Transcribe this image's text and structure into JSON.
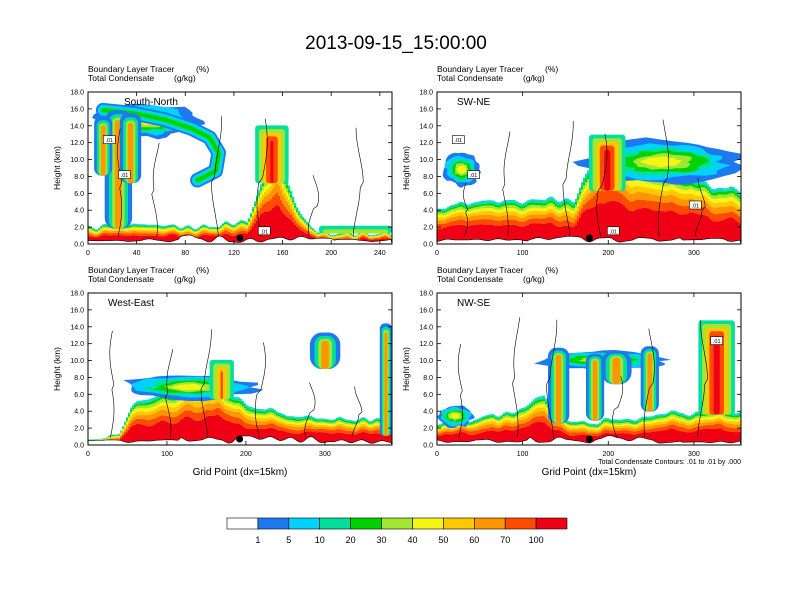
{
  "title": "2013-09-15_15:00:00",
  "contour_note": "Total Condensate Contours: .01 to .01 by .000",
  "colorbar": {
    "colors": [
      "#ffffff",
      "#1e78f0",
      "#00d2ff",
      "#00e09a",
      "#00d200",
      "#a0e632",
      "#f5f514",
      "#ffc800",
      "#ff9600",
      "#ff4b00",
      "#f00014"
    ],
    "labels": [
      "1",
      "5",
      "10",
      "20",
      "30",
      "40",
      "50",
      "60",
      "70",
      "100"
    ]
  },
  "chart_data": [
    {
      "type": "heatmap",
      "panel": "South-North",
      "title_left_1": "Boundary Layer Tracer",
      "title_right_1": "(%)",
      "title_left_2": "Total Condensate",
      "title_right_2": "(g/kg)",
      "xlabel": "",
      "ylabel": "Height (km)",
      "xlim": [
        0,
        250
      ],
      "ylim": [
        0,
        18
      ],
      "xticks": [
        0,
        40,
        80,
        120,
        160,
        200,
        240
      ],
      "yticks": [
        0,
        2,
        4,
        6,
        8,
        10,
        12,
        14,
        16,
        18
      ],
      "contour_labels": [
        ".01",
        ".01",
        ".01"
      ],
      "marker_x": 125
    },
    {
      "type": "heatmap",
      "panel": "SW-NE",
      "title_left_1": "Boundary Layer Tracer",
      "title_right_1": "(%)",
      "title_left_2": "Total Condensate",
      "title_right_2": "(g/kg)",
      "xlabel": "",
      "ylabel": "Height (km)",
      "xlim": [
        0,
        355
      ],
      "ylim": [
        0,
        18
      ],
      "xticks": [
        0,
        100,
        200,
        300
      ],
      "yticks": [
        0,
        2,
        4,
        6,
        8,
        10,
        12,
        14,
        16,
        18
      ],
      "contour_labels": [
        ".01",
        ".01",
        ".01",
        ".01"
      ],
      "marker_x": 178
    },
    {
      "type": "heatmap",
      "panel": "West-East",
      "title_left_1": "Boundary Layer Tracer",
      "title_right_1": "(%)",
      "title_left_2": "Total Condensate",
      "title_right_2": "(g/kg)",
      "xlabel": "Grid Point (dx=15km)",
      "ylabel": "Height (km)",
      "xlim": [
        0,
        385
      ],
      "ylim": [
        0,
        18
      ],
      "xticks": [
        0,
        100,
        200,
        300
      ],
      "yticks": [
        0,
        2,
        4,
        6,
        8,
        10,
        12,
        14,
        16,
        18
      ],
      "contour_labels": [],
      "marker_x": 192
    },
    {
      "type": "heatmap",
      "panel": "NW-SE",
      "title_left_1": "Boundary Layer Tracer",
      "title_right_1": "(%)",
      "title_left_2": "Total Condensate",
      "title_right_2": "(g/kg)",
      "xlabel": "Grid Point (dx=15km)",
      "ylabel": "Height (km)",
      "xlim": [
        0,
        355
      ],
      "ylim": [
        0,
        18
      ],
      "xticks": [
        0,
        100,
        200,
        300
      ],
      "yticks": [
        0,
        2,
        4,
        6,
        8,
        10,
        12,
        14,
        16,
        18
      ],
      "contour_labels": [
        ".01"
      ],
      "marker_x": 178
    }
  ]
}
